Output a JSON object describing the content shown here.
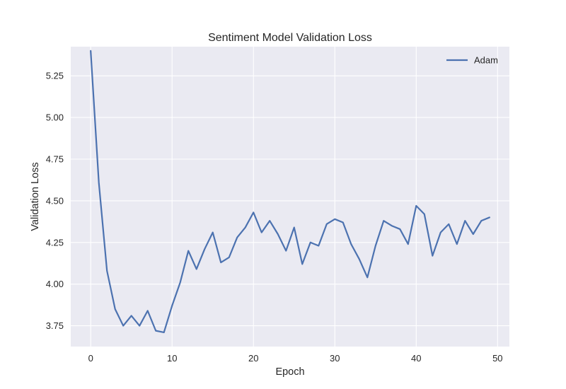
{
  "chart_data": {
    "type": "line",
    "title": "Sentiment Model Validation Loss",
    "xlabel": "Epoch",
    "ylabel": "Validation Loss",
    "xlim": [
      -2.45,
      51.45
    ],
    "ylim": [
      3.625,
      5.425
    ],
    "xticks": [
      0,
      10,
      20,
      30,
      40,
      50
    ],
    "xtick_labels": [
      "0",
      "10",
      "20",
      "30",
      "40",
      "50"
    ],
    "yticks": [
      3.75,
      4.0,
      4.25,
      4.5,
      4.75,
      5.0,
      5.25
    ],
    "ytick_labels": [
      "3.75",
      "4.00",
      "4.25",
      "4.50",
      "4.75",
      "5.00",
      "5.25"
    ],
    "grid": true,
    "legend_position": "top-right",
    "style": {
      "plot_background": "#EAEAF2",
      "grid_color": "#FFFFFF",
      "text_color": "#262626"
    },
    "x": [
      0,
      1,
      2,
      3,
      4,
      5,
      6,
      7,
      8,
      9,
      10,
      11,
      12,
      13,
      14,
      15,
      16,
      17,
      18,
      19,
      20,
      21,
      22,
      23,
      24,
      25,
      26,
      27,
      28,
      29,
      30,
      31,
      32,
      33,
      34,
      35,
      36,
      37,
      38,
      39,
      40,
      41,
      42,
      43,
      44,
      45,
      46,
      47,
      48,
      49
    ],
    "series": [
      {
        "name": "Adam",
        "color": "#4C72B0",
        "values": [
          5.4,
          4.61,
          4.08,
          3.85,
          3.75,
          3.81,
          3.75,
          3.84,
          3.72,
          3.71,
          3.87,
          4.01,
          4.2,
          4.09,
          4.21,
          4.31,
          4.13,
          4.16,
          4.28,
          4.34,
          4.43,
          4.31,
          4.38,
          4.3,
          4.2,
          4.34,
          4.12,
          4.25,
          4.23,
          4.36,
          4.39,
          4.37,
          4.24,
          4.15,
          4.04,
          4.23,
          4.38,
          4.35,
          4.33,
          4.24,
          4.47,
          4.42,
          4.17,
          4.31,
          4.36,
          4.24,
          4.38,
          4.3,
          4.38,
          4.4
        ]
      }
    ]
  }
}
